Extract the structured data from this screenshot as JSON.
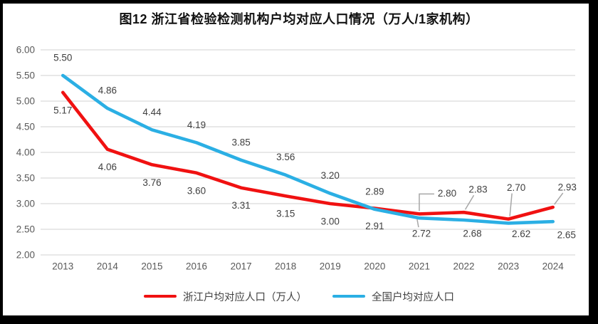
{
  "chart_data": {
    "type": "line",
    "title": "图12 浙江省检验检测机构户均对应人口情况（万人/1家机构）",
    "categories": [
      "2013",
      "2014",
      "2015",
      "2016",
      "2017",
      "2018",
      "2019",
      "2020",
      "2021",
      "2022",
      "2023",
      "2024"
    ],
    "series": [
      {
        "name": "浙江户均对应人口（万人）",
        "color": "#f01111",
        "values": [
          5.17,
          4.06,
          3.76,
          3.6,
          3.31,
          3.15,
          3.0,
          2.91,
          2.8,
          2.83,
          2.7,
          2.93
        ],
        "label_positions": [
          "below",
          "below",
          "below",
          "below",
          "below",
          "below",
          "below",
          "below",
          "callout-above",
          "callout-above",
          "callout-above",
          "callout-above"
        ],
        "label_offsets": {
          "8": [
            39,
            -29
          ],
          "9": [
            20,
            -32
          ],
          "10": [
            11,
            -44
          ],
          "11": [
            20,
            -28
          ]
        }
      },
      {
        "name": "全国户均对应人口",
        "color": "#2bafe4",
        "values": [
          5.5,
          4.86,
          4.44,
          4.19,
          3.85,
          3.56,
          3.2,
          2.89,
          2.72,
          2.68,
          2.62,
          2.65
        ],
        "label_positions": [
          "above",
          "above",
          "above",
          "above",
          "above",
          "above",
          "above",
          "above",
          "callout-below",
          "below",
          "below",
          "below"
        ],
        "label_offsets": {
          "8": [
            3,
            22
          ],
          "9": [
            12,
            19
          ],
          "10": [
            18,
            15
          ],
          "11": [
            19,
            19
          ]
        }
      }
    ],
    "xlabel": "",
    "ylabel": "",
    "ylim": [
      2.0,
      6.0
    ],
    "ytick_step": 0.5,
    "yticks": [
      "6.00",
      "5.50",
      "5.00",
      "4.50",
      "4.00",
      "3.50",
      "3.00",
      "2.50",
      "2.00"
    ],
    "value_format_decimals": 2,
    "grid": true,
    "legend_position": "bottom"
  },
  "styles": {
    "grid_color": "#d9d9d9",
    "axis_label_color": "#595959",
    "data_label_color": "#404040",
    "leader_line_color": "#a6a6a6",
    "frame_color": "#000000"
  }
}
